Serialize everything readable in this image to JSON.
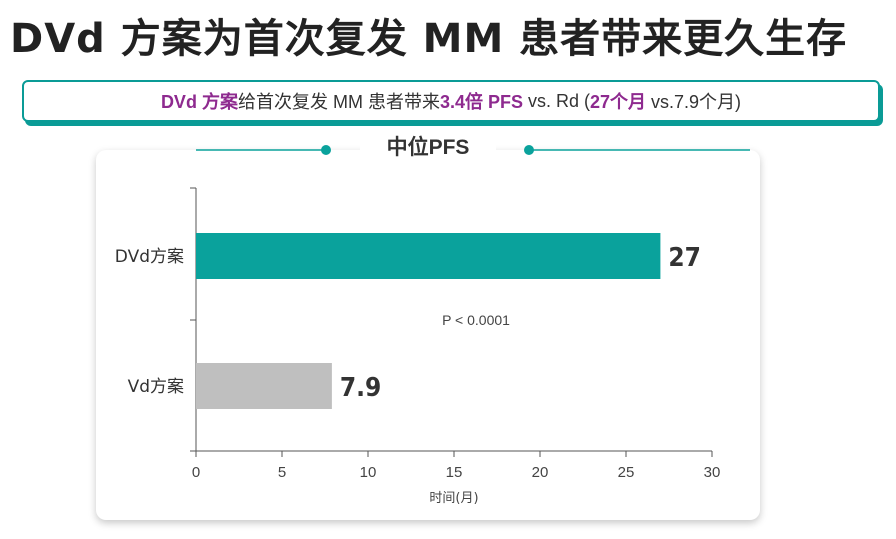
{
  "title": "DVd 方案为首次复发 MM 患者带来更久生存",
  "banner": {
    "part1": "DVd 方案",
    "part2": "给首次复发 MM 患者带来",
    "part3": "3.4倍 PFS",
    "part4": " vs. Rd (",
    "part5": "27个月",
    "part6": " vs.7.9个月)"
  },
  "colors": {
    "accent": "#0aa29c",
    "highlight": "#8e2a8f",
    "bar_secondary": "#bfbfbf"
  },
  "chart_data": {
    "type": "bar",
    "orientation": "horizontal",
    "title": "中位PFS",
    "categories": [
      "DVd方案",
      "Vd方案"
    ],
    "values": [
      27,
      7.9
    ],
    "value_labels": [
      "27",
      "7.9"
    ],
    "bar_colors": [
      "#0aa29c",
      "#bfbfbf"
    ],
    "xlabel": "时间(月)",
    "ylabel": "",
    "xlim": [
      0,
      30
    ],
    "xticks": [
      0,
      5,
      10,
      15,
      20,
      25,
      30
    ],
    "annotation": "P < 0.0001",
    "grid": false
  }
}
